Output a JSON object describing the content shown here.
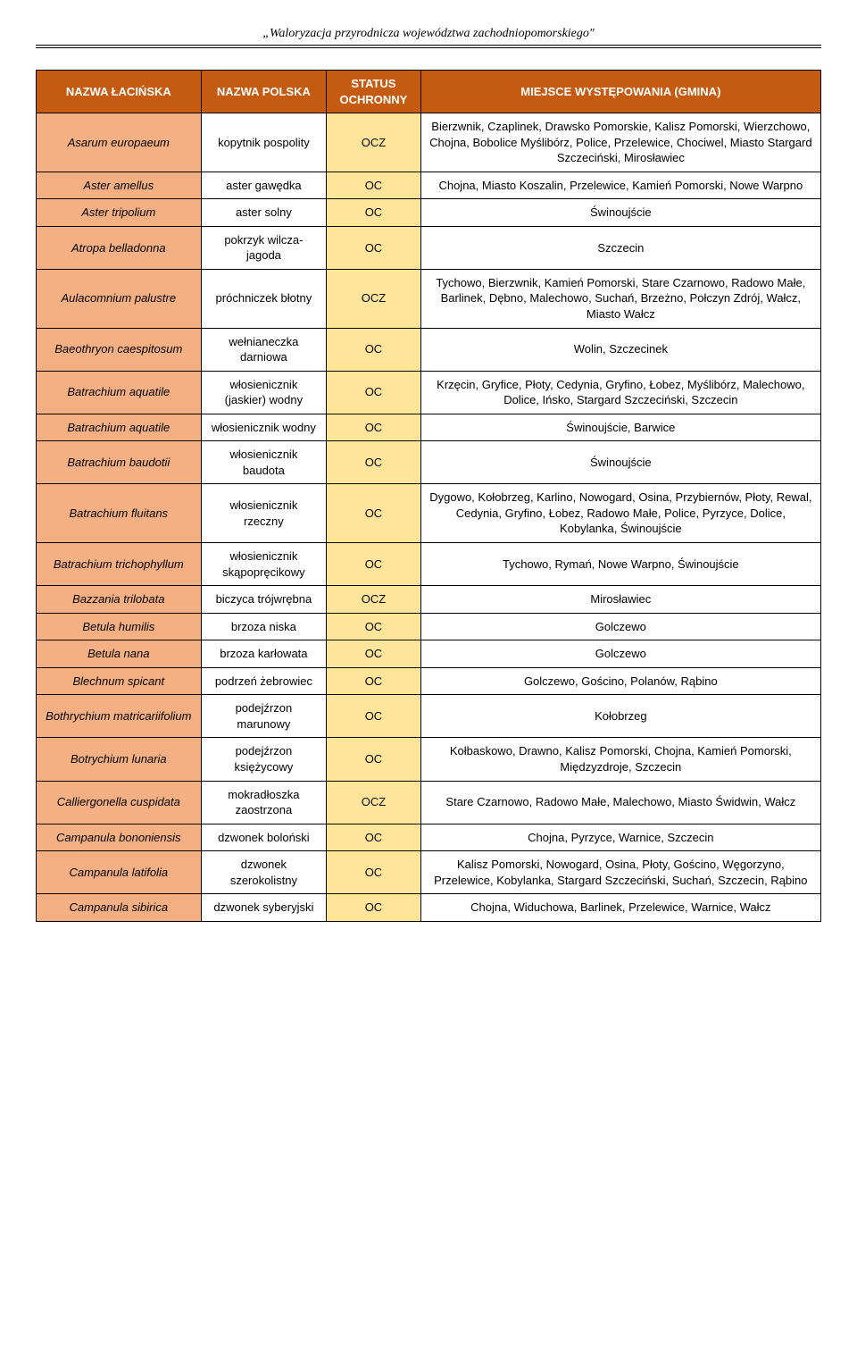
{
  "page_header": "„Waloryzacja przyrodnicza województwa zachodniopomorskiego\"",
  "colors": {
    "header_bg": "#c55a11",
    "header_text": "#ffffff",
    "col_latin_bg": "#f4b083",
    "col_polish_bg": "#ffffff",
    "col_status_bg": "#ffe599",
    "col_place_bg": "#ffffff",
    "border": "#000000"
  },
  "columns": {
    "latin": "NAZWA ŁACIŃSKA",
    "polish": "NAZWA POLSKA",
    "status": "STATUS OCHRONNY",
    "place": "MIEJSCE WYSTĘPOWANIA (GMINA)"
  },
  "rows": [
    {
      "latin": "Asarum europaeum",
      "polish": "kopytnik pospolity",
      "status": "OCZ",
      "place": "Bierzwnik, Czaplinek, Drawsko Pomorskie, Kalisz Pomorski, Wierzchowo, Chojna, Bobolice Myślibórz, Police, Przelewice, Chociwel, Miasto Stargard Szczeciński, Mirosławiec"
    },
    {
      "latin": "Aster amellus",
      "polish": "aster gawędka",
      "status": "OC",
      "place": "Chojna, Miasto Koszalin, Przelewice, Kamień Pomorski, Nowe Warpno"
    },
    {
      "latin": "Aster tripolium",
      "polish": "aster solny",
      "status": "OC",
      "place": "Świnoujście"
    },
    {
      "latin": "Atropa belladonna",
      "polish": "pokrzyk wilcza-jagoda",
      "status": "OC",
      "place": "Szczecin"
    },
    {
      "latin": "Aulacomnium palustre",
      "polish": "próchniczek błotny",
      "status": "OCZ",
      "place": "Tychowo, Bierzwnik, Kamień Pomorski, Stare Czarnowo, Radowo Małe, Barlinek, Dębno, Malechowo, Suchań, Brzeżno, Połczyn Zdrój, Wałcz, Miasto Wałcz"
    },
    {
      "latin": "Baeothryon caespitosum",
      "polish": "wełnianeczka darniowa",
      "status": "OC",
      "place": "Wolin, Szczecinek"
    },
    {
      "latin": "Batrachium aquatile",
      "polish": "włosienicznik (jaskier) wodny",
      "status": "OC",
      "place": "Krzęcin, Gryfice, Płoty, Cedynia, Gryfino, Łobez, Myślibórz, Malechowo, Dolice, Ińsko, Stargard Szczeciński, Szczecin"
    },
    {
      "latin": "Batrachium aquatile",
      "polish": "włosienicznik wodny",
      "status": "OC",
      "place": "Świnoujście, Barwice"
    },
    {
      "latin": "Batrachium baudotii",
      "polish": "włosienicznik baudota",
      "status": "OC",
      "place": "Świnoujście"
    },
    {
      "latin": "Batrachium fluitans",
      "polish": "włosienicznik rzeczny",
      "status": "OC",
      "place": "Dygowo, Kołobrzeg, Karlino, Nowogard, Osina, Przybiernów, Płoty, Rewal, Cedynia, Gryfino, Łobez, Radowo Małe, Police, Pyrzyce, Dolice, Kobylanka, Świnoujście"
    },
    {
      "latin": "Batrachium trichophyllum",
      "polish": "włosienicznik skąpopręcikowy",
      "status": "OC",
      "place": "Tychowo, Rymań, Nowe Warpno, Świnoujście"
    },
    {
      "latin": "Bazzania trilobata",
      "polish": "biczyca trójwrębna",
      "status": "OCZ",
      "place": "Mirosławiec"
    },
    {
      "latin": "Betula humilis",
      "polish": "brzoza niska",
      "status": "OC",
      "place": "Golczewo"
    },
    {
      "latin": "Betula nana",
      "polish": "brzoza karłowata",
      "status": "OC",
      "place": "Golczewo"
    },
    {
      "latin": "Blechnum spicant",
      "polish": "podrzeń żebrowiec",
      "status": "OC",
      "place": "Golczewo, Gościno, Polanów, Rąbino"
    },
    {
      "latin": "Bothrychium matricariifolium",
      "polish": "podejźrzon marunowy",
      "status": "OC",
      "place": "Kołobrzeg"
    },
    {
      "latin": "Botrychium  lunaria",
      "polish": "podejźrzon księżycowy",
      "status": "OC",
      "place": "Kołbaskowo, Drawno, Kalisz Pomorski, Chojna, Kamień Pomorski, Międzyzdroje, Szczecin"
    },
    {
      "latin": "Calliergonella cuspidata",
      "polish": "mokradłoszka zaostrzona",
      "status": "OCZ",
      "place": "Stare Czarnowo,  Radowo Małe, Malechowo, Miasto Świdwin,  Wałcz"
    },
    {
      "latin": "Campanula bononiensis",
      "polish": "dzwonek boloński",
      "status": "OC",
      "place": "Chojna, Pyrzyce, Warnice, Szczecin"
    },
    {
      "latin": "Campanula latifolia",
      "polish": "dzwonek szerokolistny",
      "status": "OC",
      "place": "Kalisz Pomorski, Nowogard, Osina, Płoty, Gościno, Węgorzyno, Przelewice, Kobylanka, Stargard Szczeciński, Suchań, Szczecin, Rąbino"
    },
    {
      "latin": "Campanula sibirica",
      "polish": "dzwonek syberyjski",
      "status": "OC",
      "place": "Chojna, Widuchowa, Barlinek, Przelewice, Warnice, Wałcz"
    }
  ]
}
